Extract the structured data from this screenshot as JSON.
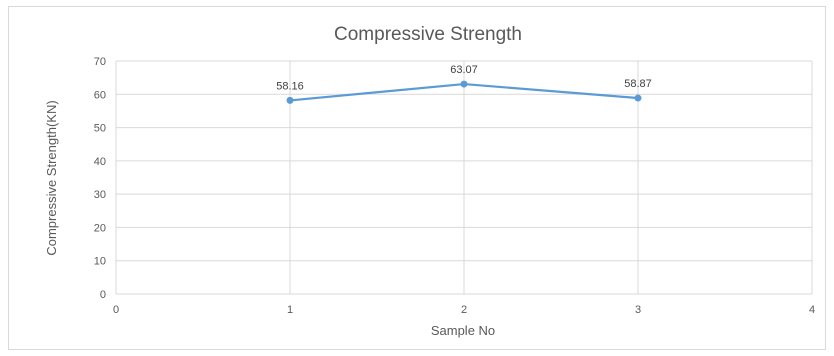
{
  "chart_data": {
    "type": "scatter",
    "title": "Compressive Strength",
    "xlabel": "Sample No",
    "ylabel": "Compressive Strength(KN)",
    "xlim": [
      0,
      4
    ],
    "ylim": [
      0,
      70
    ],
    "xticks": [
      0,
      1,
      2,
      3,
      4
    ],
    "yticks": [
      0,
      10,
      20,
      30,
      40,
      50,
      60,
      70
    ],
    "grid": true,
    "series": [
      {
        "x": [
          1,
          2,
          3
        ],
        "y": [
          58.16,
          63.07,
          58.87
        ],
        "labels": [
          "58.16",
          "63.07",
          "58.87"
        ],
        "color": "#5b9bd5"
      }
    ]
  }
}
